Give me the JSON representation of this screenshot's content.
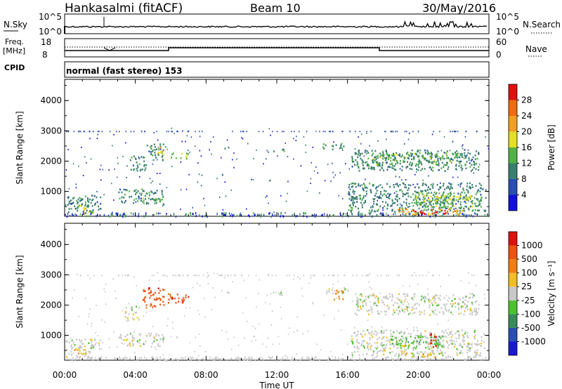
{
  "header": {
    "station": "Hankasalmi (fitACF)",
    "beam": "Beam 10",
    "date": "30/May/2016"
  },
  "top_strip": {
    "left_label": "N.Sky",
    "left_ticks": [
      "10^5",
      "10^0"
    ],
    "right_label": "N.Search",
    "right_ticks": [
      "10^5",
      "10^0"
    ]
  },
  "freq_strip": {
    "left_label_1": "Freq.",
    "left_label_2": "[MHz]",
    "left_ticks": [
      "18",
      "8"
    ],
    "right_label": "Nave",
    "right_ticks": [
      "60",
      "0"
    ]
  },
  "cpid": {
    "label": "CPID",
    "text": "normal (fast stereo) 153"
  },
  "chart_data": [
    {
      "type": "heatmap",
      "quantity": "Power",
      "colorbar_label": "Power [dB]",
      "colorbar_ticks": [
        4,
        8,
        12,
        16,
        20,
        24,
        28
      ],
      "colors": [
        "#1010e0",
        "#2a4fb0",
        "#3a7f6e",
        "#55b04a",
        "#e4e020",
        "#f0a020",
        "#f06a10",
        "#e01010"
      ],
      "xlabel": "",
      "ylabel": "Slant Range [km]",
      "x_ticks": [
        "00:00",
        "04:00",
        "08:00",
        "12:00",
        "16:00",
        "20:00",
        "00:00"
      ],
      "y_ticks": [
        1000,
        2000,
        3000,
        4000
      ],
      "ylim": [
        180,
        4700
      ],
      "xlim_hours": [
        0,
        24
      ],
      "regions": [
        {
          "t": [
            0.0,
            2.0
          ],
          "r": [
            300,
            900
          ],
          "level": 2
        },
        {
          "t": [
            0.6,
            1.2
          ],
          "r": [
            450,
            700
          ],
          "level": 3
        },
        {
          "t": [
            1.0,
            1.6
          ],
          "r": [
            300,
            500
          ],
          "level": 4
        },
        {
          "t": [
            3.0,
            5.6
          ],
          "r": [
            600,
            1100
          ],
          "level": 2
        },
        {
          "t": [
            4.0,
            5.4
          ],
          "r": [
            650,
            800
          ],
          "level": 3
        },
        {
          "t": [
            3.6,
            4.6
          ],
          "r": [
            1700,
            2200
          ],
          "level": 2
        },
        {
          "t": [
            4.6,
            5.6
          ],
          "r": [
            2000,
            2600
          ],
          "level": 2
        },
        {
          "t": [
            5.2,
            5.8
          ],
          "r": [
            2200,
            2500
          ],
          "level": 4
        },
        {
          "t": [
            6.0,
            7.0
          ],
          "r": [
            2100,
            2300
          ],
          "level": 3
        },
        {
          "t": [
            9.0,
            9.3
          ],
          "r": [
            2400,
            2500
          ],
          "level": 2
        },
        {
          "t": [
            11.6,
            12.4
          ],
          "r": [
            2350,
            2450
          ],
          "level": 2
        },
        {
          "t": [
            14.4,
            15.8
          ],
          "r": [
            2400,
            2600
          ],
          "level": 2
        },
        {
          "t": [
            16.2,
            23.4
          ],
          "r": [
            1700,
            2400
          ],
          "level": 2
        },
        {
          "t": [
            17.4,
            22.6
          ],
          "r": [
            1900,
            2300
          ],
          "level": 3
        },
        {
          "t": [
            16.0,
            23.8
          ],
          "r": [
            350,
            1300
          ],
          "level": 2
        },
        {
          "t": [
            19.6,
            23.6
          ],
          "r": [
            500,
            1000
          ],
          "level": 3
        },
        {
          "t": [
            20.0,
            23.0
          ],
          "r": [
            700,
            900
          ],
          "level": 4
        },
        {
          "t": [
            18.8,
            22.6
          ],
          "r": [
            260,
            460
          ],
          "level": 5
        },
        {
          "t": [
            19.4,
            21.6
          ],
          "r": [
            280,
            400
          ],
          "level": 7
        },
        {
          "t": [
            20.4,
            21.0
          ],
          "r": [
            300,
            360
          ],
          "level": 6
        }
      ]
    },
    {
      "type": "heatmap",
      "quantity": "Velocity",
      "colorbar_label": "Velocity [m s⁻¹]",
      "colorbar_ticks": [
        1000,
        500,
        100,
        25,
        -25,
        -100,
        -500,
        -1000
      ],
      "colors": [
        "#1a1ad0",
        "#2a4fb0",
        "#3a8a5a",
        "#4dc030",
        "#c8c8c8",
        "#f0c020",
        "#f08010",
        "#f05010",
        "#e01010"
      ],
      "xlabel": "Time UT",
      "ylabel": "Slant Range [km]",
      "x_ticks": [
        "00:00",
        "04:00",
        "08:00",
        "12:00",
        "16:00",
        "20:00",
        "00:00"
      ],
      "y_ticks": [
        1000,
        2000,
        3000,
        4000
      ],
      "ylim": [
        180,
        4700
      ],
      "xlim_hours": [
        0,
        24
      ],
      "regions": [
        {
          "t": [
            0.0,
            2.0
          ],
          "r": [
            300,
            900
          ],
          "level": 4
        },
        {
          "t": [
            0.4,
            1.2
          ],
          "r": [
            350,
            600
          ],
          "level": 5
        },
        {
          "t": [
            3.0,
            5.6
          ],
          "r": [
            650,
            1100
          ],
          "level": 4
        },
        {
          "t": [
            3.4,
            4.2
          ],
          "r": [
            1500,
            2000
          ],
          "level": 4
        },
        {
          "t": [
            4.4,
            5.6
          ],
          "r": [
            1900,
            2600
          ],
          "level": 7
        },
        {
          "t": [
            5.6,
            7.0
          ],
          "r": [
            2100,
            2400
          ],
          "level": 7
        },
        {
          "t": [
            9.0,
            9.3
          ],
          "r": [
            2400,
            2500
          ],
          "level": 4
        },
        {
          "t": [
            11.6,
            12.4
          ],
          "r": [
            2350,
            2450
          ],
          "level": 4
        },
        {
          "t": [
            14.6,
            16.0
          ],
          "r": [
            2400,
            2600
          ],
          "level": 4
        },
        {
          "t": [
            15.2,
            15.8
          ],
          "r": [
            2200,
            2500
          ],
          "level": 6
        },
        {
          "t": [
            16.4,
            23.4
          ],
          "r": [
            1700,
            2400
          ],
          "level": 4
        },
        {
          "t": [
            16.2,
            23.8
          ],
          "r": [
            350,
            1200
          ],
          "level": 4
        },
        {
          "t": [
            18.4,
            21.4
          ],
          "r": [
            600,
            1000
          ],
          "level": 3
        },
        {
          "t": [
            19.0,
            21.0
          ],
          "r": [
            300,
            450
          ],
          "level": 5
        },
        {
          "t": [
            20.6,
            21.0
          ],
          "r": [
            600,
            1200
          ],
          "level": 8
        }
      ]
    }
  ]
}
